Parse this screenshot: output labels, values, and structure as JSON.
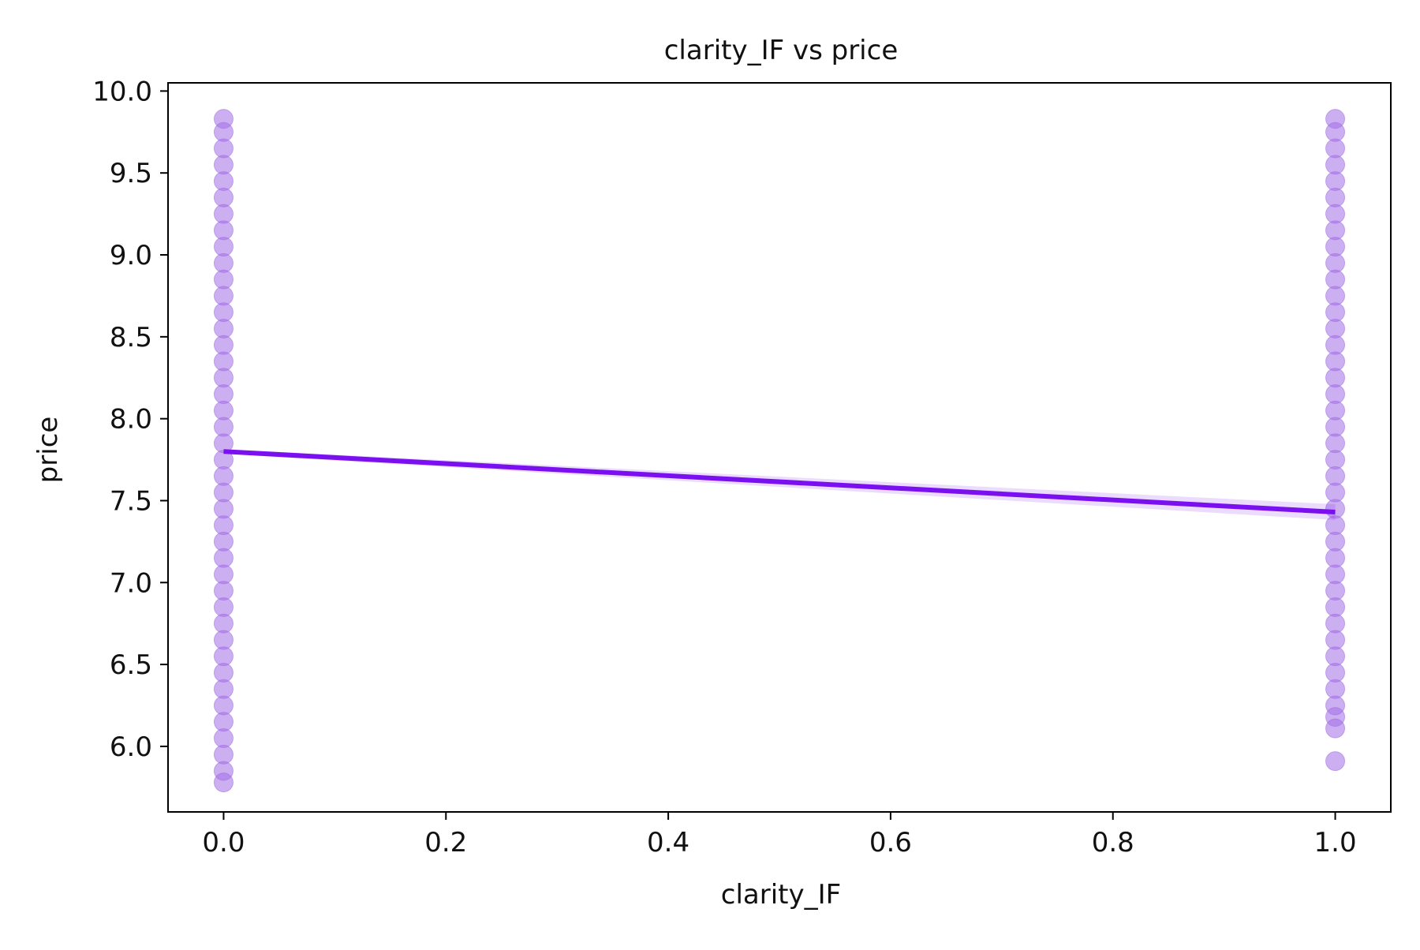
{
  "chart_data": {
    "type": "scatter",
    "title": "clarity_IF vs price",
    "xlabel": "clarity_IF",
    "ylabel": "price",
    "xlim": [
      -0.05,
      1.05
    ],
    "ylim": [
      5.6,
      10.05
    ],
    "x_ticks": [
      "0.0",
      "0.2",
      "0.4",
      "0.6",
      "0.8",
      "1.0"
    ],
    "y_ticks": [
      "6.0",
      "6.5",
      "7.0",
      "7.5",
      "8.0",
      "8.5",
      "9.0",
      "9.5",
      "10.0"
    ],
    "grid": false,
    "series": [
      {
        "kind": "scatter",
        "color": "#a36ee6",
        "points": [
          {
            "x": 0.0,
            "y": 5.78
          },
          {
            "x": 0.0,
            "y": 5.85
          },
          {
            "x": 0.0,
            "y": 5.95
          },
          {
            "x": 0.0,
            "y": 6.05
          },
          {
            "x": 0.0,
            "y": 6.15
          },
          {
            "x": 0.0,
            "y": 6.25
          },
          {
            "x": 0.0,
            "y": 6.35
          },
          {
            "x": 0.0,
            "y": 6.45
          },
          {
            "x": 0.0,
            "y": 6.55
          },
          {
            "x": 0.0,
            "y": 6.65
          },
          {
            "x": 0.0,
            "y": 6.75
          },
          {
            "x": 0.0,
            "y": 6.85
          },
          {
            "x": 0.0,
            "y": 6.95
          },
          {
            "x": 0.0,
            "y": 7.05
          },
          {
            "x": 0.0,
            "y": 7.15
          },
          {
            "x": 0.0,
            "y": 7.25
          },
          {
            "x": 0.0,
            "y": 7.35
          },
          {
            "x": 0.0,
            "y": 7.45
          },
          {
            "x": 0.0,
            "y": 7.55
          },
          {
            "x": 0.0,
            "y": 7.65
          },
          {
            "x": 0.0,
            "y": 7.75
          },
          {
            "x": 0.0,
            "y": 7.85
          },
          {
            "x": 0.0,
            "y": 7.95
          },
          {
            "x": 0.0,
            "y": 8.05
          },
          {
            "x": 0.0,
            "y": 8.15
          },
          {
            "x": 0.0,
            "y": 8.25
          },
          {
            "x": 0.0,
            "y": 8.35
          },
          {
            "x": 0.0,
            "y": 8.45
          },
          {
            "x": 0.0,
            "y": 8.55
          },
          {
            "x": 0.0,
            "y": 8.65
          },
          {
            "x": 0.0,
            "y": 8.75
          },
          {
            "x": 0.0,
            "y": 8.85
          },
          {
            "x": 0.0,
            "y": 8.95
          },
          {
            "x": 0.0,
            "y": 9.05
          },
          {
            "x": 0.0,
            "y": 9.15
          },
          {
            "x": 0.0,
            "y": 9.25
          },
          {
            "x": 0.0,
            "y": 9.35
          },
          {
            "x": 0.0,
            "y": 9.45
          },
          {
            "x": 0.0,
            "y": 9.55
          },
          {
            "x": 0.0,
            "y": 9.65
          },
          {
            "x": 0.0,
            "y": 9.75
          },
          {
            "x": 0.0,
            "y": 9.83
          },
          {
            "x": 1.0,
            "y": 5.91
          },
          {
            "x": 1.0,
            "y": 6.11
          },
          {
            "x": 1.0,
            "y": 6.18
          },
          {
            "x": 1.0,
            "y": 6.25
          },
          {
            "x": 1.0,
            "y": 6.35
          },
          {
            "x": 1.0,
            "y": 6.45
          },
          {
            "x": 1.0,
            "y": 6.55
          },
          {
            "x": 1.0,
            "y": 6.65
          },
          {
            "x": 1.0,
            "y": 6.75
          },
          {
            "x": 1.0,
            "y": 6.85
          },
          {
            "x": 1.0,
            "y": 6.95
          },
          {
            "x": 1.0,
            "y": 7.05
          },
          {
            "x": 1.0,
            "y": 7.15
          },
          {
            "x": 1.0,
            "y": 7.25
          },
          {
            "x": 1.0,
            "y": 7.35
          },
          {
            "x": 1.0,
            "y": 7.45
          },
          {
            "x": 1.0,
            "y": 7.55
          },
          {
            "x": 1.0,
            "y": 7.65
          },
          {
            "x": 1.0,
            "y": 7.75
          },
          {
            "x": 1.0,
            "y": 7.85
          },
          {
            "x": 1.0,
            "y": 7.95
          },
          {
            "x": 1.0,
            "y": 8.05
          },
          {
            "x": 1.0,
            "y": 8.15
          },
          {
            "x": 1.0,
            "y": 8.25
          },
          {
            "x": 1.0,
            "y": 8.35
          },
          {
            "x": 1.0,
            "y": 8.45
          },
          {
            "x": 1.0,
            "y": 8.55
          },
          {
            "x": 1.0,
            "y": 8.65
          },
          {
            "x": 1.0,
            "y": 8.75
          },
          {
            "x": 1.0,
            "y": 8.85
          },
          {
            "x": 1.0,
            "y": 8.95
          },
          {
            "x": 1.0,
            "y": 9.05
          },
          {
            "x": 1.0,
            "y": 9.15
          },
          {
            "x": 1.0,
            "y": 9.25
          },
          {
            "x": 1.0,
            "y": 9.35
          },
          {
            "x": 1.0,
            "y": 9.45
          },
          {
            "x": 1.0,
            "y": 9.55
          },
          {
            "x": 1.0,
            "y": 9.65
          },
          {
            "x": 1.0,
            "y": 9.75
          },
          {
            "x": 1.0,
            "y": 9.83
          }
        ]
      },
      {
        "kind": "line",
        "color": "#7a0ff0",
        "points": [
          {
            "x": 0.0,
            "y": 7.8
          },
          {
            "x": 1.0,
            "y": 7.43
          }
        ]
      }
    ]
  }
}
